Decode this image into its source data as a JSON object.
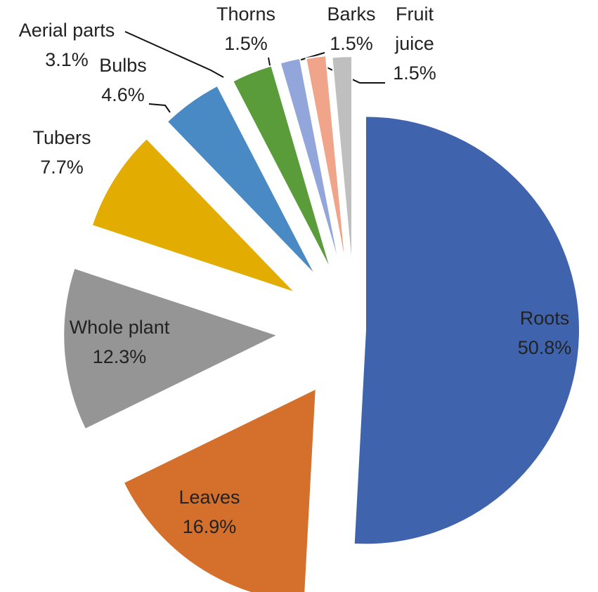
{
  "chart_data": {
    "type": "pie",
    "categories": [
      "Roots",
      "Leaves",
      "Whole plant",
      "Tubers",
      "Bulbs",
      "Aerial parts",
      "Thorns",
      "Barks",
      "Fruit juice"
    ],
    "values": [
      50.8,
      16.9,
      12.3,
      7.7,
      4.6,
      3.1,
      1.5,
      1.5,
      1.5
    ],
    "value_labels": [
      "50.8%",
      "16.9%",
      "12.3%",
      "7.7%",
      "4.6%",
      "3.1%",
      "1.5%",
      "1.5%",
      "1.5%"
    ],
    "colors": [
      "#3f64ad",
      "#d4702b",
      "#959595",
      "#e3ac00",
      "#4a8ac4",
      "#5a9c3a",
      "#92a6dc",
      "#f0a58a",
      "#bfbfbf"
    ]
  }
}
